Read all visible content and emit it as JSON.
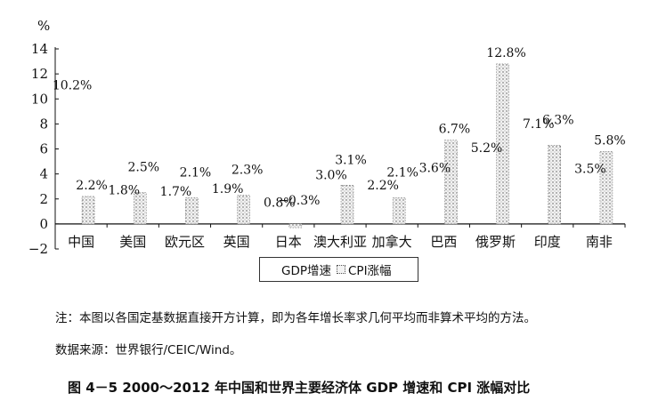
{
  "chart_data": {
    "type": "bar",
    "ylabel": "%",
    "ylim": [
      -2,
      14
    ],
    "yticks": [
      "−2",
      "0",
      "2",
      "4",
      "6",
      "8",
      "10",
      "12",
      "14"
    ],
    "ytick_values": [
      -2,
      0,
      2,
      4,
      6,
      8,
      10,
      12,
      14
    ],
    "categories": [
      "中国",
      "美国",
      "欧元区",
      "英国",
      "日本",
      "澳大利亚",
      "加拿大",
      "巴西",
      "俄罗斯",
      "印度",
      "南非"
    ],
    "series": [
      {
        "name": "GDP增速",
        "values": [
          10.2,
          1.8,
          1.7,
          1.9,
          0.8,
          3.0,
          2.2,
          3.6,
          5.2,
          7.1,
          3.5
        ],
        "labels": [
          "10.2%",
          "1.8%",
          "1.7%",
          "1.9%",
          "0.8%",
          "3.0%",
          "2.2%",
          "3.6%",
          "5.2%",
          "7.1%",
          "3.5%"
        ]
      },
      {
        "name": "CPI涨幅",
        "values": [
          2.2,
          2.5,
          2.1,
          2.3,
          -0.3,
          3.1,
          2.1,
          6.7,
          12.8,
          6.3,
          5.8
        ],
        "labels": [
          "2.2%",
          "2.5%",
          "2.1%",
          "2.3%",
          "−0.3%",
          "3.1%",
          "2.1%",
          "6.7%",
          "12.8%",
          "6.3%",
          "5.8%"
        ]
      }
    ],
    "legend": {
      "position": "bottom",
      "gdp": "GDP增速",
      "cpi": "CPI涨幅"
    },
    "grid": false
  },
  "notes": {
    "note1": "注：本图以各国定基数据直接开方计算，即为各年增长率求几何平均而非算术平均的方法。",
    "note2": "数据来源：世界银行/CEIC/Wind。",
    "caption": "图 4－5   2000～2012 年中国和世界主要经济体 GDP 增速和 CPI 涨幅对比"
  },
  "colors": {
    "axis": "#111111",
    "cpi_fill": "#ededed",
    "cpi_dots": "#555555"
  }
}
